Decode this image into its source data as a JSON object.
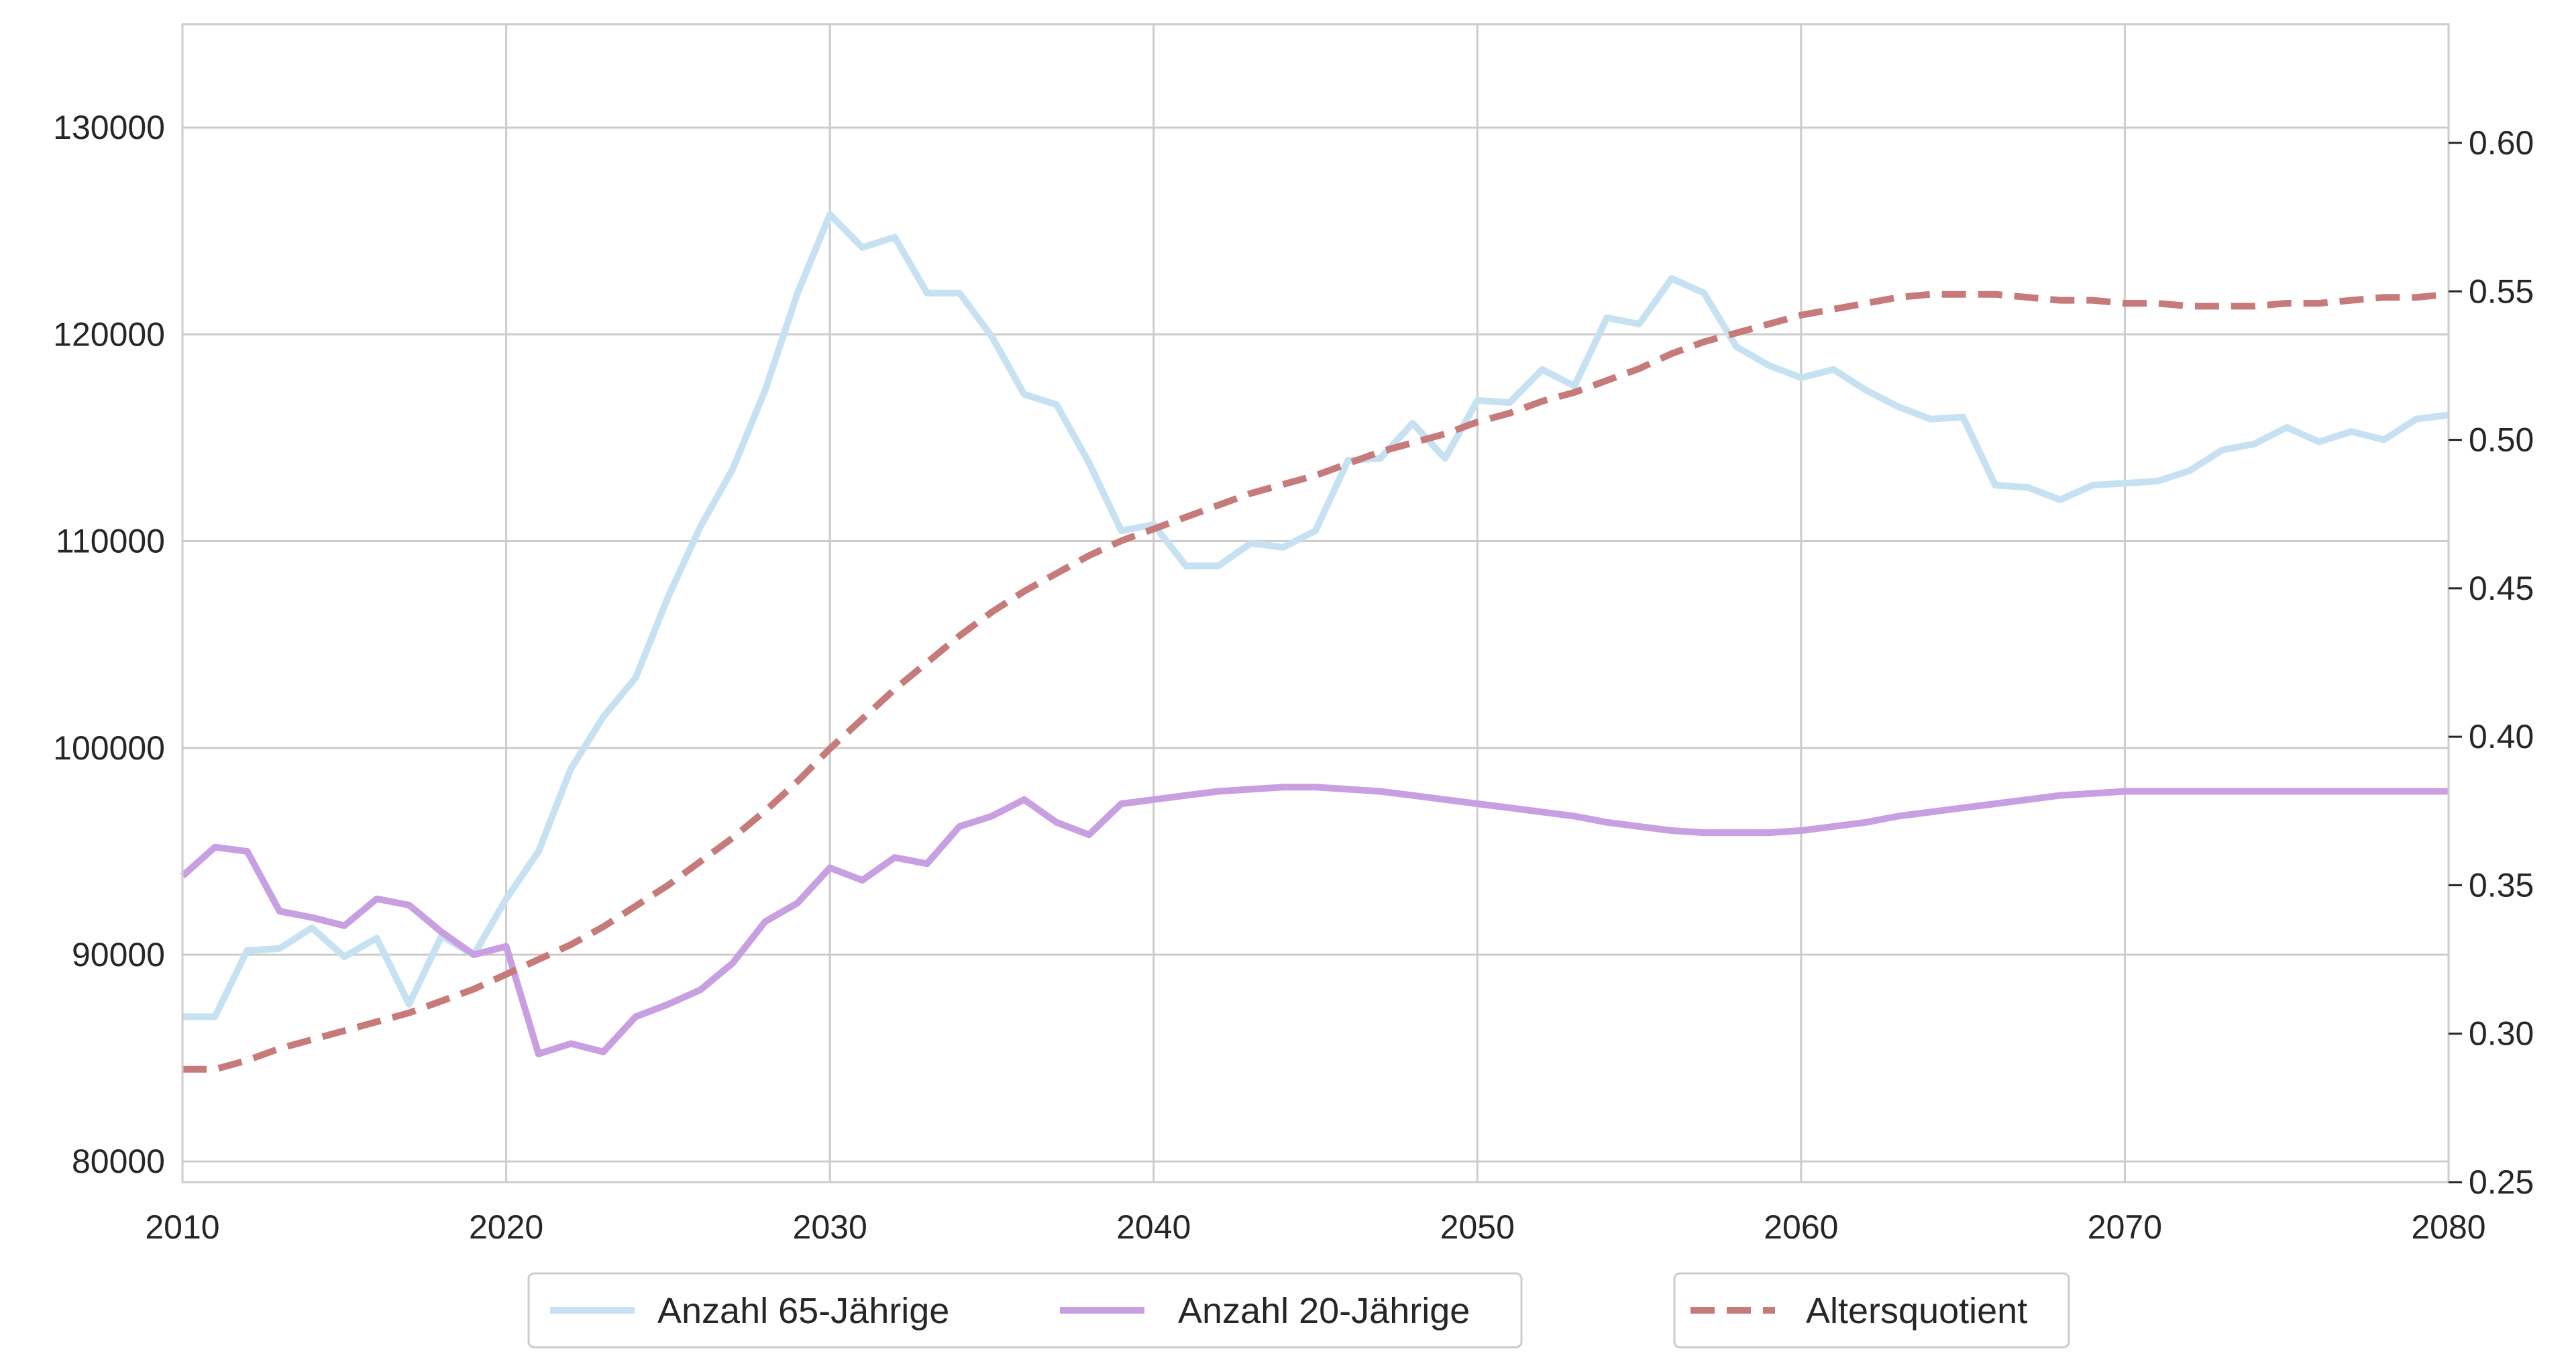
{
  "chart_data": {
    "type": "line",
    "title": "",
    "xlabel": "",
    "ylabel_left": "",
    "ylabel_right": "",
    "xlim": [
      2010,
      2080
    ],
    "ylim_left": [
      79000,
      135000
    ],
    "ylim_right": [
      0.25,
      0.64
    ],
    "x_ticks": [
      2010,
      2020,
      2030,
      2040,
      2050,
      2060,
      2070,
      2080
    ],
    "x_tick_labels": [
      "2010",
      "2020",
      "2030",
      "2040",
      "2050",
      "2060",
      "2070",
      "2080"
    ],
    "y_left_ticks": [
      80000,
      90000,
      100000,
      110000,
      120000,
      130000
    ],
    "y_left_tick_labels": [
      "80000",
      "90000",
      "100000",
      "110000",
      "120000",
      "130000"
    ],
    "y_right_ticks": [
      0.25,
      0.3,
      0.35,
      0.4,
      0.45,
      0.5,
      0.55,
      0.6
    ],
    "y_right_tick_labels": [
      "0.25",
      "0.30",
      "0.35",
      "0.40",
      "0.45",
      "0.50",
      "0.55",
      "0.60"
    ],
    "grid": true,
    "legend_position": "bottom-center",
    "x": [
      2010,
      2011,
      2012,
      2013,
      2014,
      2015,
      2016,
      2017,
      2018,
      2019,
      2020,
      2021,
      2022,
      2023,
      2024,
      2025,
      2026,
      2027,
      2028,
      2029,
      2030,
      2031,
      2032,
      2033,
      2034,
      2035,
      2036,
      2037,
      2038,
      2039,
      2040,
      2041,
      2042,
      2043,
      2044,
      2045,
      2046,
      2047,
      2048,
      2049,
      2050,
      2051,
      2052,
      2053,
      2054,
      2055,
      2056,
      2057,
      2058,
      2059,
      2060,
      2061,
      2062,
      2063,
      2064,
      2065,
      2066,
      2067,
      2068,
      2069,
      2070,
      2071,
      2072,
      2073,
      2074,
      2075,
      2076,
      2077,
      2078,
      2079,
      2080
    ],
    "series": [
      {
        "name": "Anzahl 65-Jährige",
        "axis": "left",
        "color": "#c6e1f1",
        "style": "solid",
        "values": [
          87000,
          87000,
          90200,
          90300,
          91300,
          89900,
          90800,
          87600,
          90900,
          90000,
          92700,
          95000,
          99000,
          101500,
          103400,
          107300,
          110700,
          113500,
          117300,
          122000,
          125800,
          124200,
          124700,
          122000,
          122000,
          119900,
          117100,
          116600,
          113800,
          110500,
          110800,
          108800,
          108800,
          109900,
          109700,
          110500,
          113900,
          114000,
          115700,
          114000,
          116800,
          116700,
          118300,
          117500,
          120800,
          120500,
          122700,
          122000,
          119400,
          118500,
          117900,
          118300,
          117300,
          116500,
          115900,
          116000,
          112700,
          112600,
          112000,
          112700,
          112800,
          112900,
          113400,
          114400,
          114700,
          115500,
          114800,
          115300,
          114900,
          115900,
          116100
        ]
      },
      {
        "name": "Anzahl 20-Jährige",
        "axis": "left",
        "color": "#c89fe0",
        "style": "solid",
        "values": [
          93800,
          95200,
          95000,
          92100,
          91800,
          91400,
          92700,
          92400,
          91100,
          90000,
          90400,
          85200,
          85700,
          85300,
          87000,
          87600,
          88300,
          89600,
          91600,
          92500,
          94200,
          93600,
          94700,
          94400,
          96200,
          96700,
          97500,
          96400,
          95800,
          97300,
          97500,
          97700,
          97900,
          98000,
          98100,
          98100,
          98000,
          97900,
          97700,
          97500,
          97300,
          97100,
          96900,
          96700,
          96400,
          96200,
          96000,
          95900,
          95900,
          95900,
          96000,
          96200,
          96400,
          96700,
          96900,
          97100,
          97300,
          97500,
          97700,
          97800,
          97900,
          97900,
          97900,
          97900,
          97900,
          97900,
          97900,
          97900,
          97900,
          97900,
          97900
        ]
      },
      {
        "name": "Altersquotient",
        "axis": "right",
        "color": "#c77a7a",
        "style": "dashed",
        "values": [
          0.288,
          0.288,
          0.291,
          0.295,
          0.298,
          0.301,
          0.304,
          0.307,
          0.311,
          0.315,
          0.32,
          0.325,
          0.33,
          0.336,
          0.343,
          0.35,
          0.358,
          0.366,
          0.375,
          0.385,
          0.396,
          0.406,
          0.416,
          0.425,
          0.434,
          0.442,
          0.449,
          0.455,
          0.461,
          0.466,
          0.47,
          0.474,
          0.478,
          0.482,
          0.485,
          0.488,
          0.492,
          0.496,
          0.499,
          0.502,
          0.506,
          0.509,
          0.513,
          0.516,
          0.52,
          0.524,
          0.529,
          0.533,
          0.536,
          0.539,
          0.542,
          0.544,
          0.546,
          0.548,
          0.549,
          0.549,
          0.549,
          0.548,
          0.547,
          0.547,
          0.546,
          0.546,
          0.545,
          0.545,
          0.545,
          0.546,
          0.546,
          0.547,
          0.548,
          0.548,
          0.549
        ]
      }
    ]
  }
}
